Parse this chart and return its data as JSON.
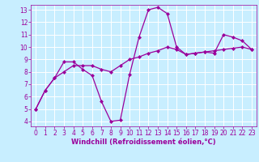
{
  "line1_x": [
    0,
    1,
    2,
    3,
    4,
    5,
    6,
    7,
    8,
    9,
    10,
    11,
    12,
    13,
    14,
    15,
    16,
    17,
    18,
    19,
    20,
    21,
    22,
    23
  ],
  "line1_y": [
    5.0,
    6.5,
    7.5,
    8.8,
    8.8,
    8.2,
    7.7,
    5.6,
    4.0,
    4.1,
    7.8,
    10.8,
    13.0,
    13.2,
    12.7,
    10.0,
    9.4,
    9.5,
    9.6,
    9.5,
    11.0,
    10.8,
    10.5,
    9.8
  ],
  "line2_x": [
    0,
    1,
    2,
    3,
    4,
    5,
    6,
    7,
    8,
    9,
    10,
    11,
    12,
    13,
    14,
    15,
    16,
    17,
    18,
    19,
    20,
    21,
    22,
    23
  ],
  "line2_y": [
    5.0,
    6.5,
    7.5,
    8.0,
    8.5,
    8.5,
    8.5,
    8.2,
    8.0,
    8.5,
    9.0,
    9.2,
    9.5,
    9.7,
    10.0,
    9.8,
    9.4,
    9.5,
    9.6,
    9.7,
    9.8,
    9.9,
    10.0,
    9.8
  ],
  "line_color": "#9b009b",
  "bg_color": "#c8eeff",
  "grid_color": "#ffffff",
  "xlabel": "Windchill (Refroidissement éolien,°C)",
  "xlim": [
    -0.5,
    23.5
  ],
  "ylim": [
    3.6,
    13.4
  ],
  "yticks": [
    4,
    5,
    6,
    7,
    8,
    9,
    10,
    11,
    12,
    13
  ],
  "xticks": [
    0,
    1,
    2,
    3,
    4,
    5,
    6,
    7,
    8,
    9,
    10,
    11,
    12,
    13,
    14,
    15,
    16,
    17,
    18,
    19,
    20,
    21,
    22,
    23
  ],
  "tick_fontsize": 5.5,
  "xlabel_fontsize": 6.0
}
